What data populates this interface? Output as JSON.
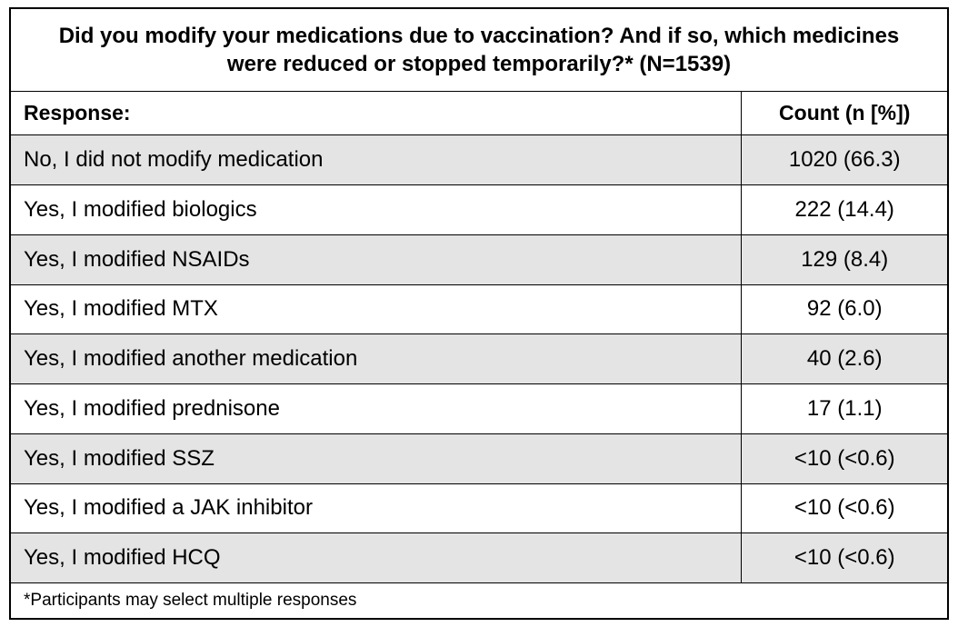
{
  "chart_data": {
    "type": "table",
    "title": "Did you modify your medications due to vaccination? And if so, which medicines were reduced or stopped temporarily?* (N=1539)",
    "sample_size": 1539,
    "columns": [
      "Response:",
      "Count (n [%])"
    ],
    "rows": [
      {
        "label": "No, I did not modify medication",
        "count": "1020 (66.3)",
        "n": 1020,
        "pct": 66.3
      },
      {
        "label": "Yes, I modified biologics",
        "count": "222 (14.4)",
        "n": 222,
        "pct": 14.4
      },
      {
        "label": "Yes, I modified NSAIDs",
        "count": "129 (8.4)",
        "n": 129,
        "pct": 8.4
      },
      {
        "label": "Yes, I modified MTX",
        "count": "92 (6.0)",
        "n": 92,
        "pct": 6.0
      },
      {
        "label": "Yes, I modified another medication",
        "count": "40 (2.6)",
        "n": 40,
        "pct": 2.6
      },
      {
        "label": "Yes, I modified prednisone",
        "count": "17 (1.1)",
        "n": 17,
        "pct": 1.1
      },
      {
        "label": "Yes, I modified SSZ",
        "count": "<10 (<0.6)",
        "n": null,
        "pct": null
      },
      {
        "label": "Yes, I modified a JAK inhibitor",
        "count": "<10 (<0.6)",
        "n": null,
        "pct": null
      },
      {
        "label": "Yes, I modified HCQ",
        "count": "<10 (<0.6)",
        "n": null,
        "pct": null
      }
    ],
    "footnote": "*Participants may select multiple responses"
  },
  "table": {
    "title": "Did you modify your medications due to vaccination? And if so,\nwhich medicines were reduced or stopped temporarily?* (N=1539)",
    "header": {
      "response": "Response:",
      "count": "Count (n [%])"
    },
    "rows": [
      {
        "label": "No, I did not modify medication",
        "count": "1020 (66.3)"
      },
      {
        "label": "Yes, I modified biologics",
        "count": "222 (14.4)"
      },
      {
        "label": "Yes, I modified NSAIDs",
        "count": "129 (8.4)"
      },
      {
        "label": "Yes, I modified MTX",
        "count": "92 (6.0)"
      },
      {
        "label": "Yes, I modified another medication",
        "count": "40 (2.6)"
      },
      {
        "label": "Yes, I modified prednisone",
        "count": "17 (1.1)"
      },
      {
        "label": "Yes, I modified SSZ",
        "count": "<10 (<0.6)"
      },
      {
        "label": "Yes, I modified a JAK inhibitor",
        "count": "<10 (<0.6)"
      },
      {
        "label": "Yes, I modified HCQ",
        "count": "<10 (<0.6)"
      }
    ],
    "footnote": "*Participants may select multiple responses"
  },
  "colors": {
    "border": "#000000",
    "shaded_row": "#e4e4e4",
    "background": "#ffffff",
    "text": "#000000"
  }
}
